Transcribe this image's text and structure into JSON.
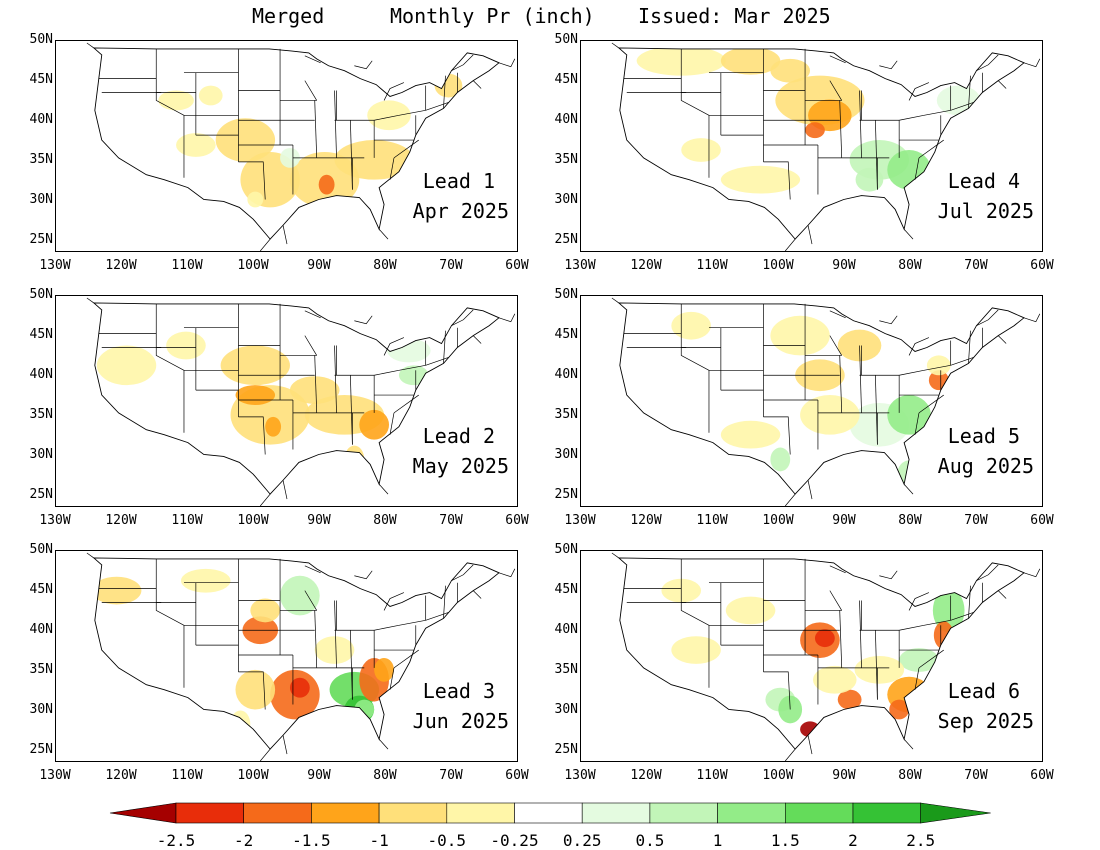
{
  "header": {
    "dataset": "Merged",
    "variable": "Monthly Pr (inch)",
    "issued": "Issued: Mar 2025"
  },
  "axes": {
    "lat_ticks": [
      "50N",
      "45N",
      "40N",
      "35N",
      "30N",
      "25N"
    ],
    "lon_ticks": [
      "130W",
      "120W",
      "110W",
      "100W",
      "90W",
      "80W",
      "70W",
      "60W"
    ]
  },
  "panels": [
    {
      "lead": "Lead 1",
      "month": "Apr 2025"
    },
    {
      "lead": "Lead 4",
      "month": "Jul 2025"
    },
    {
      "lead": "Lead 2",
      "month": "May 2025"
    },
    {
      "lead": "Lead 5",
      "month": "Aug 2025"
    },
    {
      "lead": "Lead 3",
      "month": "Jun 2025"
    },
    {
      "lead": "Lead 6",
      "month": "Sep 2025"
    }
  ],
  "colorbar": {
    "labels": [
      "-2.5",
      "-2",
      "-1.5",
      "-1",
      "-0.5",
      "-0.25",
      "0.25",
      "0.5",
      "1",
      "1.5",
      "2",
      "2.5"
    ],
    "colors": [
      "#a50000",
      "#e82d0a",
      "#f56a1a",
      "#ffa41a",
      "#ffe07a",
      "#fff6a8",
      "#ffffff",
      "#e4fbe0",
      "#c2f5b8",
      "#93ec88",
      "#64dc5a",
      "#35c235",
      "#1a9a1a"
    ]
  }
}
